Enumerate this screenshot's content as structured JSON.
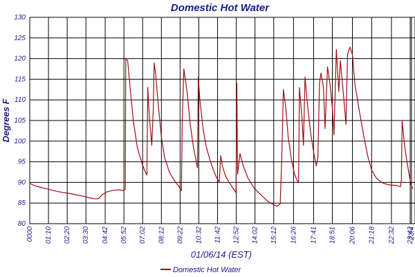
{
  "chart_data": {
    "type": "line",
    "title": "Domestic Hot Water",
    "xlabel": "01/06/14 (EST)",
    "ylabel": "Degrees F",
    "ylim": [
      80,
      130
    ],
    "yticks": [
      80,
      85,
      90,
      95,
      100,
      105,
      110,
      115,
      120,
      125,
      130
    ],
    "xlim_hours": [
      0,
      24
    ],
    "xticks": [
      "0000",
      "01:10",
      "02:20",
      "03:30",
      "04:42",
      "05:52",
      "07:02",
      "08:12",
      "09:22",
      "10:32",
      "11:42",
      "12:52",
      "14:02",
      "15:12",
      "16:26",
      "17:41",
      "18:51",
      "20:06",
      "21:18",
      "22:32",
      "23:42",
      "23:4"
    ],
    "xtick_hours": [
      0,
      1.1667,
      2.3333,
      3.5,
      4.7,
      5.8667,
      7.0333,
      8.2,
      9.3667,
      10.5333,
      11.7,
      12.8667,
      14.0333,
      15.2,
      16.4333,
      17.6833,
      18.85,
      20.1,
      21.3,
      22.5333,
      23.7,
      23.78
    ],
    "grid": true,
    "legend_position": "bottom",
    "colors": {
      "series": "#9b0d12",
      "text": "#1a1a8c",
      "grid": "#000000"
    },
    "series": [
      {
        "name": "Domestic Hot Water",
        "points": [
          [
            0.0,
            89.8
          ],
          [
            0.3,
            89.2
          ],
          [
            0.6,
            88.9
          ],
          [
            1.0,
            88.5
          ],
          [
            1.5,
            88.0
          ],
          [
            2.0,
            87.6
          ],
          [
            2.5,
            87.3
          ],
          [
            3.0,
            86.9
          ],
          [
            3.4,
            86.6
          ],
          [
            3.8,
            86.2
          ],
          [
            4.1,
            86.0
          ],
          [
            4.3,
            86.1
          ],
          [
            4.5,
            87.0
          ],
          [
            4.8,
            87.7
          ],
          [
            5.2,
            88.1
          ],
          [
            5.6,
            88.2
          ],
          [
            5.85,
            88.0
          ],
          [
            5.95,
            88.3
          ],
          [
            5.98,
            120.0
          ],
          [
            6.1,
            119.5
          ],
          [
            6.25,
            113.0
          ],
          [
            6.45,
            105.0
          ],
          [
            6.7,
            98.5
          ],
          [
            7.0,
            94.5
          ],
          [
            7.2,
            92.5
          ],
          [
            7.3,
            91.8
          ],
          [
            7.35,
            113.0
          ],
          [
            7.45,
            106.0
          ],
          [
            7.6,
            99.0
          ],
          [
            7.7,
            108.0
          ],
          [
            7.75,
            119.0
          ],
          [
            7.85,
            116.0
          ],
          [
            8.0,
            109.0
          ],
          [
            8.2,
            101.0
          ],
          [
            8.4,
            96.0
          ],
          [
            8.7,
            92.5
          ],
          [
            9.0,
            90.5
          ],
          [
            9.3,
            89.0
          ],
          [
            9.45,
            88.0
          ],
          [
            9.5,
            105.0
          ],
          [
            9.6,
            117.5
          ],
          [
            9.8,
            112.0
          ],
          [
            10.0,
            104.0
          ],
          [
            10.2,
            98.5
          ],
          [
            10.4,
            94.5
          ],
          [
            10.45,
            93.5
          ],
          [
            10.5,
            115.5
          ],
          [
            10.6,
            110.0
          ],
          [
            10.8,
            103.0
          ],
          [
            11.0,
            98.5
          ],
          [
            11.3,
            94.5
          ],
          [
            11.6,
            91.5
          ],
          [
            11.8,
            90.0
          ],
          [
            11.9,
            96.5
          ],
          [
            12.0,
            94.0
          ],
          [
            12.2,
            91.5
          ],
          [
            12.4,
            90.2
          ],
          [
            12.6,
            89.0
          ],
          [
            12.85,
            87.5
          ],
          [
            12.9,
            114.0
          ],
          [
            12.95,
            92.0
          ],
          [
            13.1,
            97.0
          ],
          [
            13.3,
            94.0
          ],
          [
            13.6,
            91.0
          ],
          [
            14.0,
            88.5
          ],
          [
            14.4,
            87.0
          ],
          [
            14.8,
            85.5
          ],
          [
            15.2,
            84.6
          ],
          [
            15.4,
            84.2
          ],
          [
            15.6,
            84.8
          ],
          [
            15.7,
            96.0
          ],
          [
            15.8,
            112.5
          ],
          [
            15.95,
            108.0
          ],
          [
            16.1,
            101.0
          ],
          [
            16.3,
            95.5
          ],
          [
            16.5,
            92.0
          ],
          [
            16.65,
            90.5
          ],
          [
            16.75,
            90.0
          ],
          [
            16.8,
            113.0
          ],
          [
            16.95,
            106.0
          ],
          [
            17.05,
            99.0
          ],
          [
            17.15,
            115.5
          ],
          [
            17.3,
            109.0
          ],
          [
            17.5,
            102.0
          ],
          [
            17.7,
            97.0
          ],
          [
            17.85,
            94.0
          ],
          [
            17.95,
            96.0
          ],
          [
            18.05,
            114.0
          ],
          [
            18.15,
            116.5
          ],
          [
            18.3,
            113.0
          ],
          [
            18.4,
            103.0
          ],
          [
            18.55,
            118.0
          ],
          [
            18.7,
            114.0
          ],
          [
            18.85,
            108.0
          ],
          [
            18.95,
            101.5
          ],
          [
            19.1,
            122.2
          ],
          [
            19.25,
            112.0
          ],
          [
            19.35,
            119.5
          ],
          [
            19.55,
            111.0
          ],
          [
            19.7,
            104.0
          ],
          [
            19.8,
            121.0
          ],
          [
            19.95,
            122.8
          ],
          [
            20.1,
            121.0
          ],
          [
            20.25,
            114.0
          ],
          [
            20.5,
            108.0
          ],
          [
            20.8,
            101.5
          ],
          [
            21.05,
            96.5
          ],
          [
            21.3,
            93.0
          ],
          [
            21.6,
            91.0
          ],
          [
            22.0,
            89.8
          ],
          [
            22.4,
            89.4
          ],
          [
            22.8,
            89.3
          ],
          [
            23.1,
            89.0
          ],
          [
            23.15,
            90.5
          ],
          [
            23.2,
            105.0
          ],
          [
            23.35,
            99.0
          ],
          [
            23.5,
            95.0
          ],
          [
            23.65,
            91.5
          ],
          [
            23.75,
            89.5
          ],
          [
            23.85,
            88.5
          ]
        ]
      }
    ]
  }
}
